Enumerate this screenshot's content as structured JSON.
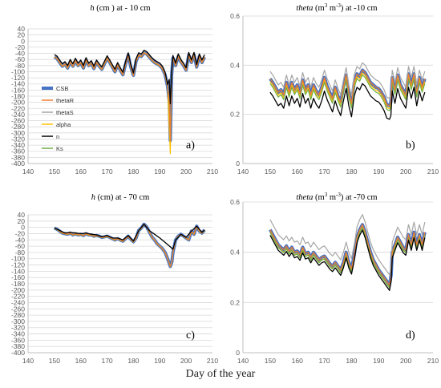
{
  "figure": {
    "xlabel": "Day of the year"
  },
  "chart_data": [
    {
      "id": "a",
      "type": "line",
      "title": "h (cm ) at - 10 cm",
      "title_parts": {
        "var": "h",
        "rest": " (cm ) at - 10 cm"
      },
      "panel_label": "a)",
      "xlim": [
        140,
        210
      ],
      "ylim": [
        -400,
        40
      ],
      "xticks": [
        "140",
        "150",
        "160",
        "170",
        "180",
        "190",
        "200",
        "210"
      ],
      "yticks": [
        "40",
        "20",
        "0",
        "-20",
        "-40",
        "-60",
        "-80",
        "-100",
        "-120",
        "-140",
        "-160",
        "-180",
        "-200",
        "-220",
        "-240",
        "-260",
        "-280",
        "-300",
        "-320",
        "-340",
        "-360",
        "-380",
        "-400"
      ],
      "legend": "left",
      "grid": true,
      "base": [
        [
          150,
          -52
        ],
        [
          151,
          -57
        ],
        [
          152,
          -70
        ],
        [
          153,
          -82
        ],
        [
          154,
          -75
        ],
        [
          155,
          -88
        ],
        [
          156,
          -68
        ],
        [
          157,
          -82
        ],
        [
          158,
          -64
        ],
        [
          159,
          -80
        ],
        [
          160,
          -70
        ],
        [
          161,
          -88
        ],
        [
          162,
          -62
        ],
        [
          163,
          -80
        ],
        [
          164,
          -72
        ],
        [
          165,
          -90
        ],
        [
          166,
          -70
        ],
        [
          167,
          -82
        ],
        [
          168,
          -92
        ],
        [
          169,
          -74
        ],
        [
          170,
          -56
        ],
        [
          171,
          -70
        ],
        [
          172,
          -85
        ],
        [
          173,
          -100
        ],
        [
          174,
          -78
        ],
        [
          175,
          -95
        ],
        [
          176,
          -110
        ],
        [
          177,
          -75
        ],
        [
          178,
          -46
        ],
        [
          179,
          -85
        ],
        [
          180,
          -112
        ],
        [
          181,
          -66
        ],
        [
          182,
          -46
        ],
        [
          183,
          -50
        ],
        [
          184,
          -38
        ],
        [
          185,
          -42
        ],
        [
          186,
          -52
        ],
        [
          187,
          -62
        ],
        [
          188,
          -70
        ],
        [
          189,
          -75
        ],
        [
          190,
          -80
        ],
        [
          191,
          -90
        ],
        [
          192,
          -110
        ],
        [
          193,
          -150
        ],
        [
          193.6,
          -200
        ],
        [
          194,
          -325
        ],
        [
          194.5,
          -110
        ],
        [
          195,
          -55
        ],
        [
          196,
          -80
        ],
        [
          197,
          -50
        ],
        [
          198,
          -68
        ],
        [
          199,
          -80
        ],
        [
          200,
          -95
        ],
        [
          201,
          -45
        ],
        [
          202,
          -70
        ],
        [
          203,
          -45
        ],
        [
          204,
          -85
        ],
        [
          205,
          -50
        ],
        [
          206,
          -70
        ],
        [
          207,
          -52
        ]
      ],
      "series": [
        {
          "name": "CSB",
          "color": "#4472c4",
          "width": 4,
          "dy": 0,
          "dip": null
        },
        {
          "name": "thetaR",
          "color": "#ed7d31",
          "width": 1.2,
          "dy": 0,
          "dip": null
        },
        {
          "name": "thetaS",
          "color": "#a5a5a5",
          "width": 1.2,
          "dy": 1.5,
          "dip": null
        },
        {
          "name": "alpha",
          "color": "#ffc000",
          "width": 1.2,
          "dy": -1,
          "dip": -368
        },
        {
          "name": "n",
          "color": "#000000",
          "width": 1.3,
          "dy": 8,
          "dip": -205
        },
        {
          "name": "Ks",
          "color": "#70ad47",
          "width": 1.2,
          "dy": 0,
          "dip": null
        }
      ]
    },
    {
      "id": "b",
      "type": "line",
      "title": "theta (m3 m-3) at -10 cm",
      "title_parts": {
        "var": "theta",
        "u1": " (m",
        "s1": "3",
        "u2": " m",
        "s2": "-3",
        "rest": ")  at -10 cm"
      },
      "panel_label": "b)",
      "xlim": [
        140,
        210
      ],
      "ylim": [
        0,
        0.6
      ],
      "xticks": [
        "140",
        "150",
        "160",
        "170",
        "180",
        "190",
        "200",
        "210"
      ],
      "yticks": [
        "0.6",
        "0.4",
        "0.2",
        "0"
      ],
      "grid": true,
      "base": [
        [
          150,
          0.345
        ],
        [
          151,
          0.33
        ],
        [
          152,
          0.31
        ],
        [
          153,
          0.29
        ],
        [
          154,
          0.3
        ],
        [
          155,
          0.28
        ],
        [
          156,
          0.33
        ],
        [
          157,
          0.29
        ],
        [
          158,
          0.33
        ],
        [
          159,
          0.3
        ],
        [
          160,
          0.32
        ],
        [
          161,
          0.285
        ],
        [
          162,
          0.34
        ],
        [
          163,
          0.3
        ],
        [
          164,
          0.32
        ],
        [
          165,
          0.28
        ],
        [
          166,
          0.32
        ],
        [
          167,
          0.295
        ],
        [
          168,
          0.28
        ],
        [
          169,
          0.31
        ],
        [
          170,
          0.35
        ],
        [
          171,
          0.315
        ],
        [
          172,
          0.29
        ],
        [
          173,
          0.265
        ],
        [
          174,
          0.31
        ],
        [
          175,
          0.275
        ],
        [
          176,
          0.25
        ],
        [
          177,
          0.31
        ],
        [
          178,
          0.36
        ],
        [
          179,
          0.29
        ],
        [
          180,
          0.245
        ],
        [
          181,
          0.33
        ],
        [
          182,
          0.365
        ],
        [
          183,
          0.355
        ],
        [
          184,
          0.38
        ],
        [
          185,
          0.37
        ],
        [
          186,
          0.35
        ],
        [
          187,
          0.33
        ],
        [
          188,
          0.32
        ],
        [
          189,
          0.31
        ],
        [
          190,
          0.305
        ],
        [
          191,
          0.29
        ],
        [
          192,
          0.27
        ],
        [
          193,
          0.24
        ],
        [
          194,
          0.235
        ],
        [
          194.5,
          0.25
        ],
        [
          195,
          0.35
        ],
        [
          196,
          0.3
        ],
        [
          197,
          0.36
        ],
        [
          198,
          0.32
        ],
        [
          199,
          0.3
        ],
        [
          200,
          0.28
        ],
        [
          201,
          0.365
        ],
        [
          202,
          0.32
        ],
        [
          203,
          0.365
        ],
        [
          204,
          0.29
        ],
        [
          205,
          0.35
        ],
        [
          206,
          0.31
        ],
        [
          207,
          0.345
        ]
      ],
      "series": [
        {
          "name": "CSB",
          "color": "#4472c4",
          "width": 4,
          "dy": 0
        },
        {
          "name": "thetaR",
          "color": "#ed7d31",
          "width": 1.2,
          "dy": 0
        },
        {
          "name": "thetaS",
          "color": "#a5a5a5",
          "width": 1.2,
          "dy": 0.03
        },
        {
          "name": "alpha",
          "color": "#ffc000",
          "width": 1.2,
          "dy": -0.012
        },
        {
          "name": "n",
          "color": "#000000",
          "width": 1.3,
          "dy": -0.055
        },
        {
          "name": "Ks",
          "color": "#70ad47",
          "width": 1.2,
          "dy": -0.02
        }
      ]
    },
    {
      "id": "c",
      "type": "line",
      "title": "h (cm) at - 70 cm",
      "title_parts": {
        "var": "h",
        "rest": " (cm) at - 70 cm"
      },
      "panel_label": "c)",
      "xlim": [
        140,
        210
      ],
      "ylim": [
        -400,
        40
      ],
      "xticks": [
        "140",
        "150",
        "160",
        "170",
        "180",
        "190",
        "200",
        "210"
      ],
      "yticks": [
        "40",
        "20",
        "0",
        "-20",
        "-40",
        "-60",
        "-80",
        "-100",
        "-120",
        "-140",
        "-160",
        "-180",
        "-200",
        "-220",
        "-240",
        "-260",
        "-280",
        "-300",
        "-320",
        "-340",
        "-360",
        "-380",
        "-400"
      ],
      "grid": true,
      "base": [
        [
          150,
          -2
        ],
        [
          151,
          -6
        ],
        [
          152,
          -12
        ],
        [
          153,
          -18
        ],
        [
          154,
          -20
        ],
        [
          155,
          -22
        ],
        [
          156,
          -18
        ],
        [
          157,
          -24
        ],
        [
          158,
          -20
        ],
        [
          159,
          -24
        ],
        [
          160,
          -22
        ],
        [
          161,
          -26
        ],
        [
          162,
          -20
        ],
        [
          163,
          -24
        ],
        [
          164,
          -24
        ],
        [
          165,
          -28
        ],
        [
          166,
          -26
        ],
        [
          167,
          -28
        ],
        [
          168,
          -32
        ],
        [
          169,
          -30
        ],
        [
          170,
          -28
        ],
        [
          171,
          -32
        ],
        [
          172,
          -36
        ],
        [
          173,
          -40
        ],
        [
          174,
          -36
        ],
        [
          175,
          -40
        ],
        [
          176,
          -44
        ],
        [
          177,
          -36
        ],
        [
          178,
          -28
        ],
        [
          179,
          -38
        ],
        [
          180,
          -46
        ],
        [
          181,
          -34
        ],
        [
          182,
          -10
        ],
        [
          183,
          -2
        ],
        [
          184,
          10
        ],
        [
          185,
          2
        ],
        [
          186,
          -14
        ],
        [
          187,
          -30
        ],
        [
          188,
          -40
        ],
        [
          189,
          -52
        ],
        [
          190,
          -60
        ],
        [
          191,
          -68
        ],
        [
          192,
          -80
        ],
        [
          193,
          -100
        ],
        [
          194,
          -125
        ],
        [
          194.6,
          -110
        ],
        [
          195,
          -80
        ],
        [
          196,
          -40
        ],
        [
          197,
          -28
        ],
        [
          198,
          -22
        ],
        [
          199,
          -28
        ],
        [
          200,
          -34
        ],
        [
          201,
          -40
        ],
        [
          202,
          -12
        ],
        [
          203,
          -22
        ],
        [
          204,
          4
        ],
        [
          205,
          -12
        ],
        [
          206,
          -18
        ],
        [
          207,
          -8
        ]
      ],
      "series": [
        {
          "name": "CSB",
          "color": "#4472c4",
          "width": 4,
          "dy": 0,
          "alt": null
        },
        {
          "name": "thetaR",
          "color": "#ed7d31",
          "width": 1.2,
          "dy": 0,
          "alt": null
        },
        {
          "name": "thetaS",
          "color": "#a5a5a5",
          "width": 1.2,
          "dy": 1,
          "alt": null
        },
        {
          "name": "alpha",
          "color": "#ffc000",
          "width": 1.2,
          "dy": -1,
          "alt": null
        },
        {
          "name": "n",
          "color": "#000000",
          "width": 1.3,
          "dy": 0,
          "alt": "n70"
        },
        {
          "name": "Ks",
          "color": "#70ad47",
          "width": 1.2,
          "dy": 0,
          "alt": null
        }
      ],
      "n70": [
        [
          150,
          -2
        ],
        [
          152,
          -10
        ],
        [
          154,
          -18
        ],
        [
          156,
          -16
        ],
        [
          158,
          -18
        ],
        [
          160,
          -20
        ],
        [
          162,
          -18
        ],
        [
          164,
          -22
        ],
        [
          166,
          -24
        ],
        [
          168,
          -30
        ],
        [
          170,
          -26
        ],
        [
          172,
          -34
        ],
        [
          174,
          -34
        ],
        [
          176,
          -40
        ],
        [
          178,
          -26
        ],
        [
          180,
          -44
        ],
        [
          182,
          -10
        ],
        [
          184,
          10
        ],
        [
          186,
          -10
        ],
        [
          188,
          -22
        ],
        [
          190,
          -34
        ],
        [
          192,
          -48
        ],
        [
          194,
          -62
        ],
        [
          195,
          -70
        ],
        [
          196,
          -40
        ],
        [
          198,
          -22
        ],
        [
          200,
          -32
        ],
        [
          202,
          -12
        ],
        [
          204,
          4
        ],
        [
          206,
          -16
        ],
        [
          207,
          -8
        ]
      ]
    },
    {
      "id": "d",
      "type": "line",
      "title": "theta (m3 m-3) at -70 cm",
      "title_parts": {
        "var": "theta",
        "u1": " (m",
        "s1": "3",
        "u2": " m",
        "s2": "-3",
        "rest": ") at -70 cm"
      },
      "panel_label": "d)",
      "xlim": [
        140,
        210
      ],
      "ylim": [
        0,
        0.6
      ],
      "xticks": [
        "140",
        "150",
        "160",
        "170",
        "180",
        "190",
        "200",
        "210"
      ],
      "yticks": [
        "0.6",
        "0.4",
        "0.2",
        "0"
      ],
      "grid": true,
      "base": [
        [
          150,
          0.49
        ],
        [
          151,
          0.47
        ],
        [
          152,
          0.45
        ],
        [
          153,
          0.43
        ],
        [
          154,
          0.42
        ],
        [
          155,
          0.41
        ],
        [
          156,
          0.425
        ],
        [
          157,
          0.405
        ],
        [
          158,
          0.42
        ],
        [
          159,
          0.4
        ],
        [
          160,
          0.405
        ],
        [
          161,
          0.39
        ],
        [
          162,
          0.42
        ],
        [
          163,
          0.395
        ],
        [
          164,
          0.4
        ],
        [
          165,
          0.38
        ],
        [
          166,
          0.4
        ],
        [
          167,
          0.385
        ],
        [
          168,
          0.37
        ],
        [
          169,
          0.38
        ],
        [
          170,
          0.385
        ],
        [
          171,
          0.37
        ],
        [
          172,
          0.355
        ],
        [
          173,
          0.345
        ],
        [
          174,
          0.36
        ],
        [
          175,
          0.345
        ],
        [
          176,
          0.33
        ],
        [
          177,
          0.36
        ],
        [
          178,
          0.4
        ],
        [
          179,
          0.36
        ],
        [
          180,
          0.335
        ],
        [
          181,
          0.39
        ],
        [
          182,
          0.46
        ],
        [
          183,
          0.49
        ],
        [
          184,
          0.51
        ],
        [
          185,
          0.48
        ],
        [
          186,
          0.44
        ],
        [
          187,
          0.4
        ],
        [
          188,
          0.37
        ],
        [
          189,
          0.35
        ],
        [
          190,
          0.33
        ],
        [
          191,
          0.315
        ],
        [
          192,
          0.3
        ],
        [
          193,
          0.285
        ],
        [
          194,
          0.27
        ],
        [
          194.6,
          0.31
        ],
        [
          195,
          0.4
        ],
        [
          196,
          0.43
        ],
        [
          197,
          0.46
        ],
        [
          198,
          0.44
        ],
        [
          199,
          0.42
        ],
        [
          200,
          0.41
        ],
        [
          201,
          0.47
        ],
        [
          202,
          0.43
        ],
        [
          203,
          0.48
        ],
        [
          204,
          0.43
        ],
        [
          205,
          0.47
        ],
        [
          206,
          0.43
        ],
        [
          207,
          0.48
        ]
      ],
      "series": [
        {
          "name": "CSB",
          "color": "#4472c4",
          "width": 4,
          "dy": 0
        },
        {
          "name": "thetaR",
          "color": "#ed7d31",
          "width": 1.2,
          "dy": 0
        },
        {
          "name": "thetaS",
          "color": "#a5a5a5",
          "width": 1.2,
          "dy": 0.04
        },
        {
          "name": "alpha",
          "color": "#ffc000",
          "width": 1.2,
          "dy": -0.01
        },
        {
          "name": "n",
          "color": "#000000",
          "width": 1.3,
          "dy": -0.022
        },
        {
          "name": "Ks",
          "color": "#70ad47",
          "width": 1.2,
          "dy": -0.012
        }
      ]
    }
  ]
}
